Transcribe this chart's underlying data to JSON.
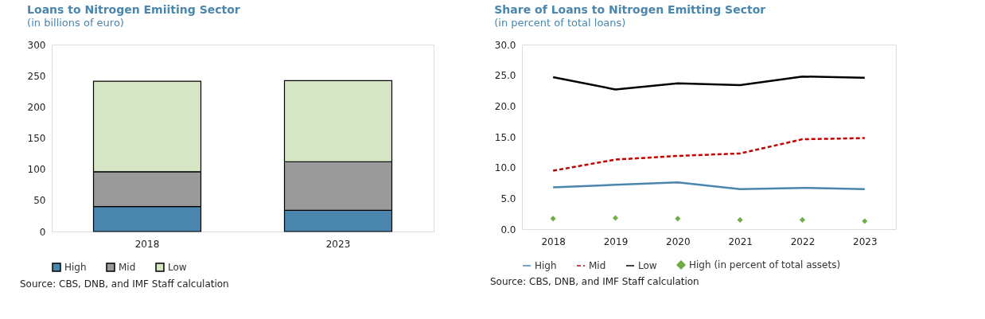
{
  "chart_data": [
    {
      "type": "bar",
      "title": "Loans to Nitrogen Emiiting Sector",
      "subtitle": "(in billions of euro)",
      "categories": [
        "2018",
        "2023"
      ],
      "stacked": true,
      "ylim": [
        0,
        300
      ],
      "yticks": [
        0,
        50,
        100,
        150,
        200,
        250,
        300
      ],
      "grid": false,
      "legend": "bottom",
      "annotations": [
        "Source: CBS, DNB, and IMF Staff calculation"
      ],
      "series": [
        {
          "name": "High",
          "color": "#4a86ad",
          "values": [
            40,
            34
          ]
        },
        {
          "name": "Mid",
          "color": "#9a9a9a",
          "values": [
            56,
            78
          ]
        },
        {
          "name": "Low",
          "color": "#d6e6c4",
          "values": [
            145,
            130
          ]
        }
      ]
    },
    {
      "type": "line",
      "title": "Share of Loans to Nitrogen Emitting Sector",
      "subtitle": "(in percent of total loans)",
      "categories": [
        "2018",
        "2019",
        "2020",
        "2021",
        "2022",
        "2023"
      ],
      "ylim": [
        0,
        30
      ],
      "yticks": [
        {
          "value": 0,
          "label": "0.0"
        },
        {
          "value": 5,
          "label": "5.0"
        },
        {
          "value": 10,
          "label": "10.0"
        },
        {
          "value": 15,
          "label": "15.0"
        },
        {
          "value": 20,
          "label": "20.0"
        },
        {
          "value": 25,
          "label": "25.0"
        },
        {
          "value": 30,
          "label": "30.0"
        }
      ],
      "grid": false,
      "legend": "bottom",
      "annotations": [
        "Source: CBS, DNB, and IMF Staff calculation"
      ],
      "series": [
        {
          "name": "High",
          "color": "#4a86ad",
          "line_style": "solid",
          "values": [
            6.8,
            7.2,
            7.6,
            6.5,
            6.7,
            6.5
          ]
        },
        {
          "name": "Mid",
          "color": "#c00000",
          "line_style": "dashed",
          "values": [
            9.5,
            11.3,
            11.9,
            12.3,
            14.6,
            14.8
          ]
        },
        {
          "name": "Low",
          "color": "#000000",
          "line_style": "solid",
          "values": [
            24.7,
            22.7,
            23.7,
            23.4,
            24.8,
            24.6
          ]
        },
        {
          "name": "High (in percent of total assets)",
          "type": "scatter",
          "marker": "diamond",
          "color": "#70ad47",
          "values": [
            1.7,
            1.8,
            1.7,
            1.5,
            1.5,
            1.3
          ]
        }
      ]
    }
  ]
}
